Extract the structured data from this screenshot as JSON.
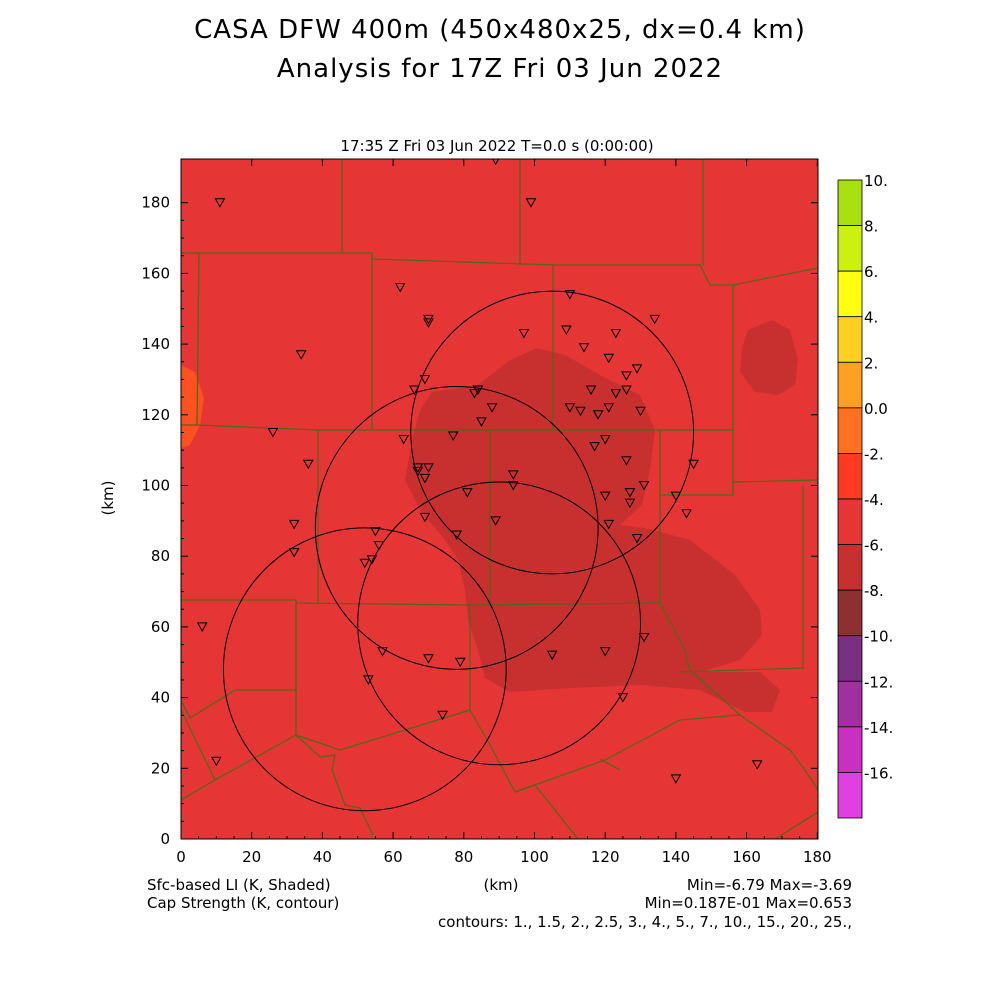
{
  "title_line1": "CASA DFW 400m (450x480x25, dx=0.4 km)",
  "title_line2": "Analysis for 17Z Fri 03 Jun 2022",
  "plot_header": "17:35 Z Fri 03 Jun 2022    T=0.0 s (0:00:00)",
  "x_axis": {
    "label": "(km)",
    "ticks": [
      "0",
      "20",
      "40",
      "60",
      "80",
      "100",
      "120",
      "140",
      "160",
      "180"
    ]
  },
  "y_axis": {
    "label": "(km)",
    "ticks": [
      "0",
      "20",
      "40",
      "60",
      "80",
      "100",
      "120",
      "140",
      "160",
      "180"
    ]
  },
  "colorbar": {
    "labels": [
      "10.",
      "8.",
      "6.",
      "4.",
      "2.",
      "0.0",
      "-2.",
      "-4.",
      "-6.",
      "-8.",
      "-10.",
      "-12.",
      "-14.",
      "-16."
    ],
    "colors": [
      "#a8e010",
      "#ccf010",
      "#ffff10",
      "#ffd020",
      "#ffa020",
      "#ff7020",
      "#ff3a20",
      "#e53535",
      "#c83030",
      "#8e3030",
      "#7a3080",
      "#a030a0",
      "#c830c0",
      "#e040e0"
    ]
  },
  "field_colors": {
    "background": "#e53535",
    "low_li": "#c83030",
    "high_li": "#ff5020",
    "county_lines": "#4a6a18"
  },
  "footer": {
    "left1": "Sfc-based LI (K, Shaded)",
    "left2": "Cap Strength (K, contour)",
    "center": "(km)",
    "right1": "Min=-6.79 Max=-3.69",
    "right2": "Min=0.187E-01 Max=0.653",
    "contours": "contours: 1., 1.5, 2., 2.5, 3., 4., 5., 7., 10., 15., 20., 25.,"
  },
  "radars_km": [
    {
      "x": 105,
      "y": 115
    },
    {
      "x": 78,
      "y": 88
    },
    {
      "x": 52,
      "y": 48
    },
    {
      "x": 90,
      "y": 61
    }
  ],
  "radar_radius_km": 40,
  "stations_km": [
    [
      11,
      180
    ],
    [
      89,
      192
    ],
    [
      99,
      180
    ],
    [
      62,
      156
    ],
    [
      70,
      147
    ],
    [
      70,
      146
    ],
    [
      110,
      154
    ],
    [
      134,
      147
    ],
    [
      97,
      143
    ],
    [
      109,
      144
    ],
    [
      123,
      143
    ],
    [
      114,
      139
    ],
    [
      34,
      137
    ],
    [
      121,
      136
    ],
    [
      126,
      131
    ],
    [
      129,
      133
    ],
    [
      69,
      130
    ],
    [
      66,
      127
    ],
    [
      84,
      127
    ],
    [
      83,
      126
    ],
    [
      116,
      127
    ],
    [
      123,
      126
    ],
    [
      126,
      127
    ],
    [
      88,
      122
    ],
    [
      110,
      122
    ],
    [
      113,
      121
    ],
    [
      118,
      120
    ],
    [
      121,
      122
    ],
    [
      130,
      121
    ],
    [
      85,
      118
    ],
    [
      26,
      115
    ],
    [
      63,
      113
    ],
    [
      77,
      114
    ],
    [
      120,
      113
    ],
    [
      117,
      111
    ],
    [
      126,
      107
    ],
    [
      145,
      106
    ],
    [
      36,
      106
    ],
    [
      70,
      105
    ],
    [
      67,
      105
    ],
    [
      67,
      104
    ],
    [
      69,
      102
    ],
    [
      94,
      103
    ],
    [
      94,
      100
    ],
    [
      131,
      100
    ],
    [
      127,
      98
    ],
    [
      120,
      97
    ],
    [
      81,
      98
    ],
    [
      140,
      97
    ],
    [
      69,
      91
    ],
    [
      143,
      92
    ],
    [
      89,
      90
    ],
    [
      121,
      89
    ],
    [
      127,
      95
    ],
    [
      32,
      89
    ],
    [
      55,
      87
    ],
    [
      78,
      86
    ],
    [
      129,
      85
    ],
    [
      56,
      83
    ],
    [
      32,
      81
    ],
    [
      54,
      79
    ],
    [
      52,
      78
    ],
    [
      6,
      60
    ],
    [
      131,
      57
    ],
    [
      57,
      53
    ],
    [
      120,
      53
    ],
    [
      70,
      51
    ],
    [
      79,
      50
    ],
    [
      105,
      52
    ],
    [
      53,
      45
    ],
    [
      125,
      40
    ],
    [
      74,
      35
    ],
    [
      10,
      22
    ],
    [
      163,
      21
    ],
    [
      140,
      17
    ]
  ]
}
